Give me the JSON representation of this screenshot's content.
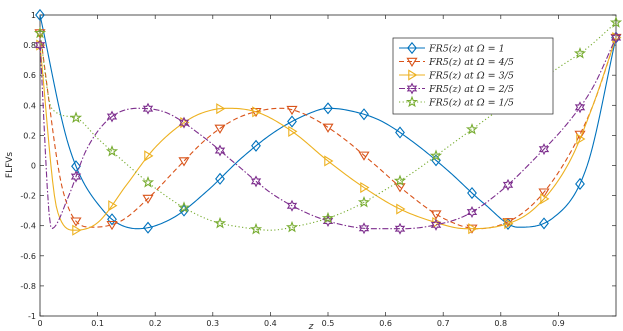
{
  "chart_data": {
    "type": "line",
    "title": "",
    "xlabel": "z",
    "ylabel": "FLFVs",
    "xlim": [
      0,
      1
    ],
    "ylim": [
      -1,
      1
    ],
    "x_ticks": [
      "0",
      "0.1",
      "0.2",
      "0.3",
      "0.4",
      "0.5",
      "0.6",
      "0.7",
      "0.8",
      "0.9"
    ],
    "y_ticks": [
      "-1",
      "-0.8",
      "-0.6",
      "-0.4",
      "-0.2",
      "0",
      "0.2",
      "0.4",
      "0.6",
      "0.8",
      "1"
    ],
    "grid": false,
    "legend_position": "top-right",
    "series": [
      {
        "name": "FR5(z) at Ω = 1",
        "color": "#0072bd",
        "line": "solid",
        "marker": "diamond",
        "x": [
          0,
          0.05,
          0.11,
          0.17,
          0.23,
          0.29,
          0.35,
          0.41,
          0.47,
          0.5,
          0.53,
          0.59,
          0.65,
          0.71,
          0.77,
          0.83,
          0.89,
          0.95,
          1.0
        ],
        "y": [
          1.0,
          0.13,
          -0.3,
          -0.42,
          -0.35,
          -0.17,
          0.05,
          0.23,
          0.35,
          0.38,
          0.37,
          0.3,
          0.15,
          -0.04,
          -0.25,
          -0.41,
          -0.35,
          0.0,
          0.85
        ],
        "markers_x": [
          0,
          0.0625,
          0.125,
          0.1875,
          0.25,
          0.3125,
          0.375,
          0.4375,
          0.5,
          0.5625,
          0.625,
          0.6875,
          0.75,
          0.8125,
          0.875,
          0.9375,
          1.0
        ]
      },
      {
        "name": "FR5(z) at Ω = 4/5",
        "color": "#d95319",
        "line": "dashed",
        "marker": "triangle-down",
        "x": [
          0,
          0.04,
          0.09,
          0.14,
          0.19,
          0.24,
          0.29,
          0.34,
          0.39,
          0.42,
          0.46,
          0.52,
          0.58,
          0.64,
          0.7,
          0.76,
          0.82,
          0.87,
          0.92,
          0.96,
          1.0
        ],
        "y": [
          0.88,
          -0.17,
          -0.41,
          -0.37,
          -0.21,
          -0.01,
          0.18,
          0.31,
          0.37,
          0.38,
          0.34,
          0.2,
          0.01,
          -0.19,
          -0.35,
          -0.42,
          -0.36,
          -0.2,
          0.08,
          0.4,
          0.85
        ],
        "markers_x": [
          0,
          0.0625,
          0.125,
          0.1875,
          0.25,
          0.3125,
          0.375,
          0.4375,
          0.5,
          0.5625,
          0.625,
          0.6875,
          0.75,
          0.8125,
          0.875,
          0.9375,
          1.0
        ]
      },
      {
        "name": "FR5(z) at Ω = 3/5",
        "color": "#edb120",
        "line": "solid",
        "marker": "triangle-right",
        "x": [
          0,
          0.03,
          0.06,
          0.1,
          0.15,
          0.2,
          0.26,
          0.3,
          0.33,
          0.38,
          0.44,
          0.5,
          0.56,
          0.62,
          0.68,
          0.74,
          0.8,
          0.86,
          0.92,
          0.96,
          1.0
        ],
        "y": [
          0.8,
          -0.3,
          -0.43,
          -0.38,
          -0.13,
          0.12,
          0.31,
          0.37,
          0.38,
          0.35,
          0.22,
          0.03,
          -0.14,
          -0.28,
          -0.37,
          -0.42,
          -0.4,
          -0.28,
          0.03,
          0.4,
          0.85
        ],
        "markers_x": [
          0,
          0.0625,
          0.125,
          0.1875,
          0.25,
          0.3125,
          0.375,
          0.4375,
          0.5,
          0.5625,
          0.625,
          0.6875,
          0.75,
          0.8125,
          0.875,
          0.9375,
          1.0
        ]
      },
      {
        "name": "FR5(z) at Ω = 2/5",
        "color": "#7e2f8e",
        "line": "dashdot",
        "marker": "hexagram",
        "x": [
          0,
          0.02,
          0.05,
          0.08,
          0.12,
          0.17,
          0.22,
          0.28,
          0.34,
          0.4,
          0.46,
          0.52,
          0.58,
          0.63,
          0.68,
          0.74,
          0.8,
          0.86,
          0.92,
          0.96,
          1.0
        ],
        "y": [
          0.8,
          -0.42,
          -0.2,
          0.1,
          0.31,
          0.38,
          0.35,
          0.2,
          0.01,
          -0.18,
          -0.31,
          -0.39,
          -0.42,
          -0.42,
          -0.4,
          -0.33,
          -0.17,
          0.05,
          0.3,
          0.52,
          0.85
        ],
        "markers_x": [
          0,
          0.0625,
          0.125,
          0.1875,
          0.25,
          0.3125,
          0.375,
          0.4375,
          0.5,
          0.5625,
          0.625,
          0.6875,
          0.75,
          0.8125,
          0.875,
          0.9375,
          1.0
        ]
      },
      {
        "name": "FR5(z) at Ω = 1/5",
        "color": "#77ac30",
        "line": "dotted",
        "marker": "pentagram",
        "x": [
          0,
          0.02,
          0.06,
          0.1,
          0.15,
          0.2,
          0.25,
          0.3,
          0.35,
          0.4,
          0.45,
          0.5,
          0.55,
          0.6,
          0.65,
          0.7,
          0.75,
          0.8,
          0.85,
          0.9,
          0.95,
          1.0
        ],
        "y": [
          0.88,
          0.38,
          0.32,
          0.18,
          0.01,
          -0.15,
          -0.28,
          -0.37,
          -0.41,
          -0.43,
          -0.4,
          -0.35,
          -0.27,
          -0.16,
          -0.04,
          0.1,
          0.24,
          0.38,
          0.52,
          0.65,
          0.78,
          0.95
        ],
        "markers_x": [
          0,
          0.0625,
          0.125,
          0.1875,
          0.25,
          0.3125,
          0.375,
          0.4375,
          0.5,
          0.5625,
          0.625,
          0.6875,
          0.75,
          0.8125,
          0.875,
          0.9375,
          1.0
        ]
      }
    ]
  }
}
